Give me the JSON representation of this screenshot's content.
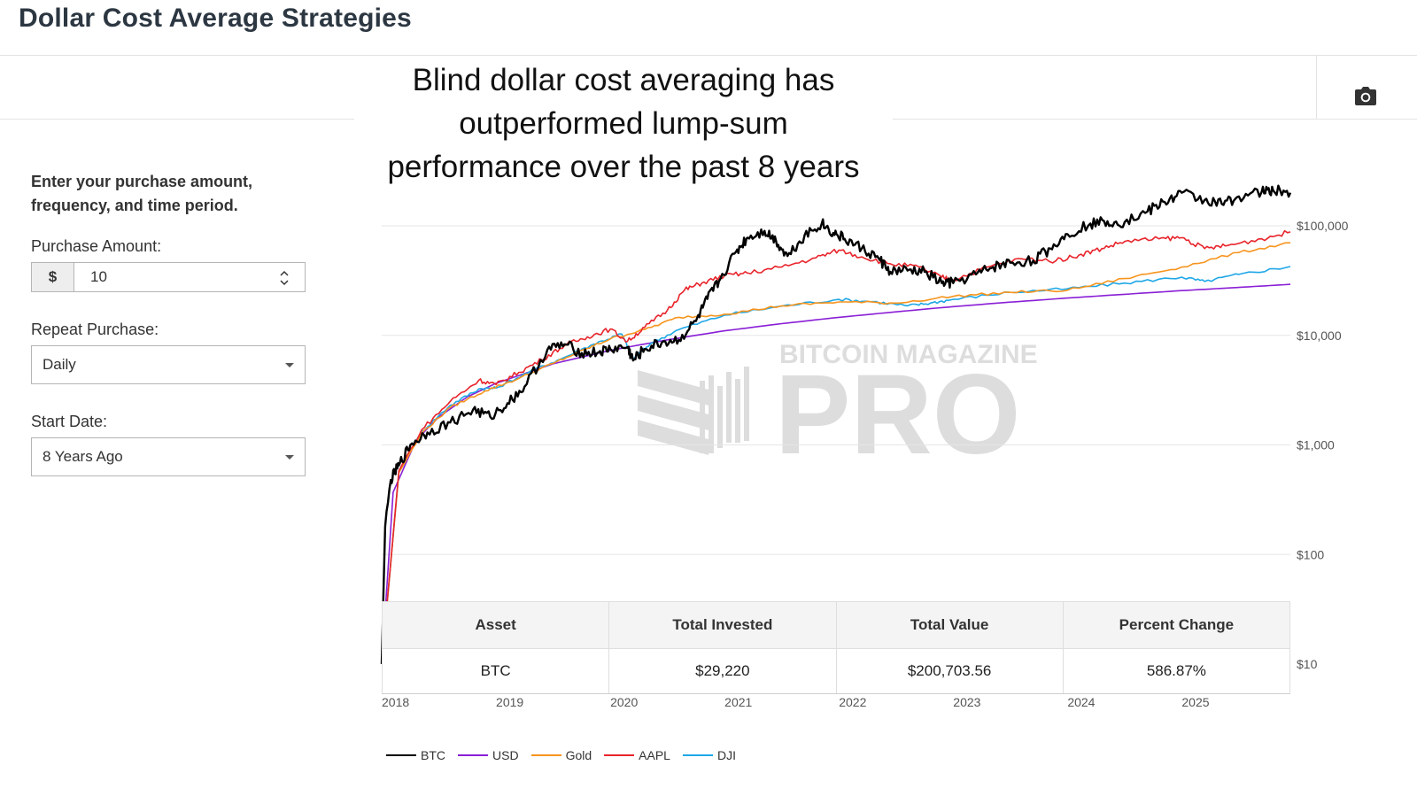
{
  "page": {
    "title": "Dollar Cost Average Strategies",
    "headline": [
      "Blind dollar cost averaging has",
      "outperformed lump-sum",
      "performance over the past 8 years"
    ]
  },
  "toolbar": {
    "camera_icon": "camera-icon"
  },
  "form": {
    "intro": "Enter your purchase amount, frequency, and time period.",
    "purchase_amount": {
      "label": "Purchase Amount:",
      "prefix": "$",
      "value": "10"
    },
    "repeat_purchase": {
      "label": "Repeat Purchase:",
      "selected": "Daily"
    },
    "start_date": {
      "label": "Start Date:",
      "selected": "8 Years Ago"
    }
  },
  "watermark": {
    "text_small": "BITCOIN MAGAZINE",
    "text_big": "PRO"
  },
  "table": {
    "headers": [
      "Asset",
      "Total Invested",
      "Total Value",
      "Percent Change"
    ],
    "rows": [
      [
        "BTC",
        "$29,220",
        "$200,703.56",
        "586.87%"
      ]
    ]
  },
  "chart_data": {
    "type": "line",
    "title": "Blind dollar cost averaging has outperformed lump-sum performance over the past 8 years",
    "x_range": [
      2018,
      2025.95
    ],
    "x_ticks": [
      {
        "value": 2018,
        "label": "2018"
      },
      {
        "value": 2019,
        "label": "2019"
      },
      {
        "value": 2020,
        "label": "2020"
      },
      {
        "value": 2021,
        "label": "2021"
      },
      {
        "value": 2022,
        "label": "2022"
      },
      {
        "value": 2023,
        "label": "2023"
      },
      {
        "value": 2024,
        "label": "2024"
      },
      {
        "value": 2025,
        "label": "2025"
      }
    ],
    "y_scale": "log",
    "y_range": [
      10,
      300000
    ],
    "y_ticks": [
      {
        "value": 100000,
        "label": "$100,000"
      },
      {
        "value": 10000,
        "label": "$10,000"
      },
      {
        "value": 1000,
        "label": "$1,000"
      },
      {
        "value": 100,
        "label": "$100"
      },
      {
        "value": 10,
        "label": "$10"
      }
    ],
    "legend_position": "bottom-left",
    "series": [
      {
        "name": "BTC",
        "color": "#000000",
        "x": [
          2018.0,
          2018.03,
          2018.08,
          2018.15,
          2018.25,
          2018.4,
          2018.6,
          2018.8,
          2018.95,
          2019.1,
          2019.25,
          2019.45,
          2019.6,
          2019.75,
          2019.9,
          2020.0,
          2020.15,
          2020.2,
          2020.3,
          2020.45,
          2020.6,
          2020.75,
          2020.85,
          2020.95,
          2021.1,
          2021.2,
          2021.35,
          2021.45,
          2021.55,
          2021.7,
          2021.85,
          2021.95,
          2022.05,
          2022.2,
          2022.35,
          2022.45,
          2022.6,
          2022.75,
          2022.9,
          2023.0,
          2023.2,
          2023.35,
          2023.5,
          2023.7,
          2023.85,
          2024.0,
          2024.2,
          2024.35,
          2024.5,
          2024.7,
          2024.85,
          2025.0,
          2025.2,
          2025.35,
          2025.5,
          2025.7,
          2025.8,
          2025.95
        ],
        "y": [
          10,
          180,
          480,
          650,
          1000,
          1300,
          1600,
          2100,
          1800,
          2400,
          3400,
          7400,
          8300,
          6900,
          7000,
          7500,
          7800,
          5900,
          7500,
          8600,
          9100,
          13500,
          21500,
          31000,
          58000,
          78000,
          90000,
          73000,
          53000,
          82000,
          105000,
          86000,
          76000,
          62000,
          50000,
          38000,
          39000,
          38000,
          30000,
          30000,
          36000,
          42000,
          46000,
          48000,
          62000,
          84000,
          105000,
          110000,
          108000,
          135000,
          165000,
          200000,
          172000,
          158000,
          185000,
          205000,
          210000,
          200703
        ]
      },
      {
        "name": "USD",
        "color": "#8a1fd6",
        "x": [
          2018.0,
          2018.1,
          2018.3,
          2018.5,
          2018.75,
          2019.0,
          2019.5,
          2020.0,
          2020.5,
          2021.0,
          2021.5,
          2022.0,
          2022.5,
          2023.0,
          2023.5,
          2024.0,
          2024.5,
          2025.0,
          2025.5,
          2025.95
        ],
        "y": [
          10,
          370,
          1100,
          1800,
          2750,
          3650,
          5500,
          7300,
          9100,
          11000,
          12800,
          14600,
          16400,
          18300,
          20100,
          21900,
          23700,
          25600,
          27400,
          29220
        ]
      },
      {
        "name": "Gold",
        "color": "#f7941d",
        "x": [
          2018.0,
          2018.15,
          2018.35,
          2018.6,
          2018.9,
          2019.2,
          2019.5,
          2019.8,
          2020.0,
          2020.3,
          2020.6,
          2021.0,
          2021.5,
          2022.0,
          2022.5,
          2023.0,
          2023.5,
          2024.0,
          2024.5,
          2025.0,
          2025.5,
          2025.95
        ],
        "y": [
          10,
          560,
          1280,
          2200,
          3100,
          4050,
          5550,
          7600,
          9300,
          11300,
          14600,
          15600,
          18600,
          20200,
          19700,
          22700,
          24700,
          25800,
          33000,
          42000,
          57000,
          70000
        ]
      },
      {
        "name": "AAPL",
        "color": "#e8242b",
        "x": [
          2018.0,
          2018.15,
          2018.35,
          2018.6,
          2018.85,
          2019.0,
          2019.2,
          2019.4,
          2019.6,
          2019.8,
          2020.0,
          2020.15,
          2020.3,
          2020.5,
          2020.65,
          2020.8,
          2021.0,
          2021.2,
          2021.5,
          2021.8,
          2022.0,
          2022.2,
          2022.45,
          2022.7,
          2022.9,
          2023.0,
          2023.3,
          2023.6,
          2023.9,
          2024.1,
          2024.3,
          2024.5,
          2024.8,
          2025.0,
          2025.2,
          2025.4,
          2025.7,
          2025.95
        ],
        "y": [
          10,
          580,
          1380,
          2500,
          3900,
          3550,
          4600,
          6000,
          8100,
          9700,
          11400,
          8800,
          11800,
          17000,
          26000,
          30000,
          35000,
          37000,
          42000,
          51000,
          60000,
          52000,
          45000,
          42000,
          34000,
          32000,
          42000,
          50000,
          48000,
          54000,
          62000,
          72000,
          76000,
          78000,
          62000,
          66000,
          76000,
          88000
        ]
      },
      {
        "name": "DJI",
        "color": "#1ea7e6",
        "x": [
          2018.0,
          2018.15,
          2018.35,
          2018.6,
          2018.85,
          2019.0,
          2019.3,
          2019.6,
          2019.85,
          2020.1,
          2020.2,
          2020.35,
          2020.6,
          2021.0,
          2021.5,
          2022.0,
          2022.3,
          2022.6,
          2022.8,
          2023.0,
          2023.5,
          2024.0,
          2024.5,
          2025.0,
          2025.2,
          2025.5,
          2025.95
        ],
        "y": [
          10,
          560,
          1330,
          2300,
          3250,
          3300,
          4700,
          6300,
          8300,
          10300,
          6100,
          8400,
          11300,
          15300,
          18500,
          21300,
          20300,
          18600,
          19700,
          21300,
          24700,
          26600,
          30000,
          34000,
          31000,
          36000,
          42500
        ]
      }
    ]
  }
}
